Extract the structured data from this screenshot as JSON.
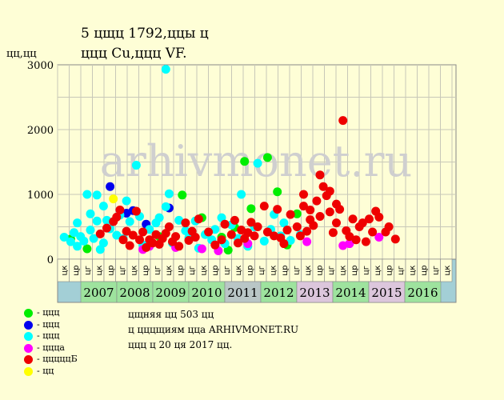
{
  "title_line1": "5  цщц 1792,ццы ц",
  "title_line2": "ццц Cu,ццц VF.",
  "y_label": "цц,цц",
  "watermark": "arhivmonet.ru",
  "legend": [
    {
      "label": "- ццц",
      "color": "#00ee00"
    },
    {
      "label": "- ццц",
      "color": "#0000ee"
    },
    {
      "label": "- ццц",
      "color": "#00ffff"
    },
    {
      "label": "- ццца",
      "color": "#ff00ff"
    },
    {
      "label": "- цццццБ",
      "color": "#ee0000"
    },
    {
      "label": "- цц",
      "color": "#ffff00"
    }
  ],
  "info": [
    "цщняя цц 503 цц",
    "ц цццщиям цца ARHIVMONET.RU",
    "ццц ц 20 ця 2017 цц."
  ],
  "chart_data": {
    "type": "scatter",
    "ylim": [
      0,
      3000
    ],
    "yticks": [
      0,
      1000,
      2000,
      3000
    ],
    "grid": true,
    "half_year_labels": [
      "цк",
      "цр",
      "цг",
      "цк",
      "цр",
      "цг",
      "цк",
      "цр",
      "цг",
      "цк",
      "цр",
      "цг",
      "цк",
      "цр",
      "цг",
      "цк",
      "цр",
      "цг",
      "цк",
      "цр",
      "цг",
      "цк",
      "цр",
      "цг",
      "цк",
      "цр",
      "цг",
      "цк",
      "цр",
      "цг",
      "цк",
      "цр",
      "цг",
      "цк",
      "цр",
      "цг",
      "цк",
      "цр",
      "цг",
      "цк",
      "цр",
      "цг",
      "цк",
      "цр",
      "цг",
      "цк",
      "цр",
      "цг",
      "цк",
      "цр",
      "цг",
      "цк",
      "цр",
      "цг",
      "цк",
      "цр",
      "цг",
      "цк",
      "цр",
      "цг",
      "цк",
      "цр",
      "цг",
      "цк",
      "цр",
      "цг",
      "цк",
      "цр",
      "цг",
      "цк",
      "цр",
      "цг",
      "цк",
      "цр",
      "цг",
      "цк",
      "цр",
      "цг",
      "цк",
      "цр",
      "цг",
      "цк",
      "цр",
      "цг",
      "цк",
      "цр",
      "цг",
      "цк",
      "цр",
      "цг",
      "цк",
      "цр",
      "цг",
      "цк",
      "цр",
      "цг",
      "цк",
      "цр",
      "цг",
      "цк",
      "цр",
      "цг",
      "цк",
      "цр",
      "цг",
      "цк",
      "цр",
      "цг",
      "цк",
      "цр",
      "цг",
      "цк",
      "цр",
      "цг",
      "цк",
      "цр",
      "цг",
      "цк",
      "цр",
      "цг",
      "цк",
      "цр",
      "цг",
      "цк",
      "цр",
      "цг",
      "цк",
      "цр",
      "цг",
      "цк",
      "цр",
      "цг",
      "цк",
      "цр",
      "цг",
      "цк",
      "цр",
      "цг",
      "цк",
      "цр",
      "цг",
      "цк",
      "цр",
      "цг",
      "цк",
      "цр",
      "цг",
      "цк",
      "цр",
      "цг",
      "цк",
      "цр",
      "цг",
      "цк",
      "цр",
      "цг",
      "цк",
      "цр",
      "цг",
      "цк",
      "цр",
      "цг",
      "цк",
      "цр",
      "цг",
      "цк",
      "цр",
      "цг",
      "цк",
      "цр",
      "цг",
      "цк",
      "цр",
      "цг",
      "цк",
      "цр",
      "цг",
      "цк",
      "цр",
      "цг",
      "цк",
      "цр",
      "цг",
      "цк",
      "цр",
      "цг",
      "цк",
      "цр",
      "цг",
      "цк",
      "цр",
      "цг",
      "цк",
      "цр",
      "цг",
      "цк",
      "цр",
      "цг",
      "цк",
      "цр",
      "цг",
      "цк",
      "цр",
      "цг",
      "цк",
      "цр",
      "цг",
      "цк",
      "цр",
      "цг",
      "цк",
      "цр",
      "цг",
      "цк",
      "цр",
      "цг",
      "цк",
      "цр",
      "цг",
      "цк",
      "цр",
      "цг",
      "цк",
      "цр",
      "цг",
      "цк",
      "цр",
      "цг",
      "цк",
      "цр",
      "цг",
      "цк",
      "цр",
      "цг",
      "цк",
      "цр",
      "цг",
      "цк",
      "цр",
      "цг",
      "цк",
      "цр",
      "цг",
      "цк",
      "цр",
      "цг",
      "цк",
      "цр",
      "цг",
      "цк",
      "цр",
      "цг",
      "цк",
      "цр",
      "цг",
      "цк",
      "цр",
      "цг",
      "цк",
      "цр",
      "цг",
      "цк",
      "цр",
      "цг",
      "цк",
      "цр",
      "цг",
      "цк",
      "цр",
      "цг",
      "цк",
      "цр",
      "цг",
      "цк",
      "цр",
      "цг",
      "цк",
      "цр",
      "цг",
      "цк",
      "цр",
      "цг",
      "цк",
      "цр",
      "цг",
      "цк",
      "цр",
      "цг",
      "цк",
      "цр",
      "цг",
      "цк",
      "цр",
      "цг",
      "цк",
      "цр",
      "цг",
      "цк",
      "цр",
      "цг",
      "цк",
      "цр",
      "цг",
      "цк",
      "цр",
      "цг",
      "цк",
      "цр",
      "цг",
      "цк",
      "цр",
      "цг",
      "цк",
      "цр",
      "цг",
      "цк",
      "цр",
      "цг",
      "цк",
      "цр",
      "цг",
      "цк",
      "цр",
      "цг",
      "цк",
      "цр",
      "цг",
      "цк",
      "цр",
      "цг",
      "цк",
      "цр",
      "цг",
      "цк",
      "цр",
      "цг",
      "цк",
      "цр",
      "цг",
      "цк",
      "цр",
      "цг",
      "цк",
      "цр",
      "цг",
      "цк",
      "цр",
      "цг",
      "цк",
      "цр",
      "цг",
      "цк",
      "цр",
      "цг",
      "цк",
      "цр",
      "цг",
      "цк",
      "цр",
      "цг",
      "цк",
      "цр",
      "цг",
      "цк",
      "цр",
      "цг",
      "цк",
      "цр",
      "цг",
      "цк",
      "цр",
      "цг",
      "цк",
      "цр",
      "цг",
      "цк",
      "цр",
      "цг",
      "цк",
      "цр",
      "цг",
      "цк",
      "цр",
      "цг",
      "цк",
      "цр",
      "цг",
      "цк",
      "цр",
      "цг",
      "цк",
      "цр",
      "цг",
      "цк",
      "цр",
      "цг",
      "цк",
      "цр",
      "цг",
      "цк",
      "цр",
      "цг",
      "цк",
      "цр",
      "цг",
      "цк",
      "цр",
      "цг",
      "цк",
      "цр",
      "цг",
      "цк",
      "цр",
      "цг",
      "цк",
      "цр",
      "цг",
      "цк",
      "цр",
      "цг",
      "цк",
      "цр",
      "цг",
      "цк",
      "цр",
      "цг",
      "цк",
      "цр",
      "цг",
      "цк",
      "цр",
      "цг",
      "цк",
      "цр",
      "цг",
      "цк",
      "цр",
      "цг",
      "цк",
      "цр",
      "цг",
      "цк",
      "цр",
      "цг",
      "цк",
      "цр",
      "цг",
      "цк",
      "цр",
      "цг",
      "цк",
      "цр",
      "цг",
      "цк",
      "цр",
      "цг",
      "цк",
      "цр",
      "цг",
      "цк",
      "цр",
      "цг",
      "цк",
      "цр",
      "цг",
      "цк",
      "цр",
      "цг",
      "цк",
      "цр",
      "цг",
      "цк",
      "цр",
      "цг",
      "цк",
      "цр",
      "цг",
      "цк",
      "цр",
      "цг",
      "цк",
      "цр",
      "цг",
      "цк",
      "цр",
      "цг",
      "цк",
      "цр",
      "цг",
      "цк",
      "цр",
      "цг",
      "цк",
      "цр",
      "цг",
      "цк",
      "цр",
      "цг",
      "цк",
      "цр",
      "цг",
      "цк",
      "цр",
      "цг",
      "цк",
      "цр",
      "цг",
      "цк",
      "цр",
      "цг",
      "цк",
      "цр",
      "цг",
      "цк",
      "цр",
      "цг",
      "цк",
      "цр",
      "цг",
      "цк",
      "цр",
      "цг",
      "цк",
      "цр",
      "цг",
      "цк",
      "цр",
      "цг",
      "цк",
      "цр",
      "цг",
      "цк",
      "цр",
      "цг",
      "цк",
      "цр",
      "цг",
      "цк",
      "цр",
      "цг",
      "цк",
      "цр",
      "цг",
      "цк",
      "цр",
      "цг",
      "цк",
      "цр",
      "цг",
      "цк",
      "цр",
      "цг",
      "цк",
      "цр",
      "цг",
      "цк",
      "цр",
      "цг",
      "цк",
      "цр",
      "цг",
      "цк",
      "цр",
      "цг",
      "цк",
      "цр",
      "цг",
      "цк",
      "цр",
      "цг",
      "цк",
      "цр",
      "цг",
      "цк",
      "цр",
      "цг",
      "цк",
      "цр",
      "цг",
      "цк",
      "цр",
      "цг",
      "цк",
      "цр",
      "цг",
      "цк",
      "цр",
      "цг",
      "цк",
      "цр",
      "цг",
      "цк",
      "цр",
      "цг",
      "цк",
      "цр",
      "цг",
      "цк",
      "цр",
      "цг",
      "цк",
      "цр",
      "цг",
      "цк",
      "цр",
      "цг",
      "цк",
      "цр",
      "цг",
      "цк",
      "цр",
      "цг",
      "цк",
      "цр",
      "цг",
      "цк",
      "цр",
      "цг",
      "цк",
      "цр",
      "цг",
      "цк",
      "цр",
      "цг",
      "цк",
      "цр",
      "цг",
      "цк",
      "цр",
      "цг",
      "цк",
      "цр",
      "цг",
      "цк",
      "цр",
      "цг",
      "цк",
      "цр",
      "цг",
      "цк",
      "цр",
      "цг",
      "цк",
      "цр",
      "цг",
      "цк",
      "цр",
      "цг",
      "цк",
      "цр",
      "цг",
      "цк",
      "цр",
      "цг",
      "цк",
      "цр",
      "цг",
      "цк",
      "цр",
      "цг",
      "цк",
      "цр",
      "цг",
      "цк",
      "цр",
      "цг"
    ],
    "years": [
      "2007",
      "2008",
      "2009",
      "2010",
      "2011",
      "2012",
      "2013",
      "2014",
      "2015",
      "2016"
    ],
    "year_colors": [
      "#9ee39e",
      "#9ee39e",
      "#9ee39e",
      "#9ee39e",
      "#b9c6c6",
      "#9ee39e",
      "#dcc6dc",
      "#9ee39e",
      "#dcc6dc",
      "#9ee39e"
    ],
    "series": [
      {
        "color": "#00ee00",
        "points": [
          [
            2006.9,
            310
          ],
          [
            2007.4,
            160
          ],
          [
            2009.6,
            350
          ],
          [
            2010.3,
            990
          ],
          [
            2010.9,
            640
          ],
          [
            2011.5,
            340
          ],
          [
            2011.7,
            140
          ],
          [
            2011.9,
            490
          ],
          [
            2012.2,
            1510
          ],
          [
            2012.4,
            780
          ],
          [
            2012.9,
            1570
          ],
          [
            2013.2,
            1040
          ],
          [
            2013.5,
            220
          ],
          [
            2013.8,
            700
          ]
        ]
      },
      {
        "color": "#0000ee",
        "points": [
          [
            2008.1,
            1120
          ],
          [
            2008.6,
            710
          ],
          [
            2008.8,
            750
          ],
          [
            2009.2,
            540
          ],
          [
            2009.9,
            790
          ]
        ]
      },
      {
        "color": "#00ffff",
        "points": [
          [
            2006.7,
            340
          ],
          [
            2006.9,
            270
          ],
          [
            2007.0,
            410
          ],
          [
            2007.1,
            200
          ],
          [
            2007.1,
            560
          ],
          [
            2007.2,
            350
          ],
          [
            2007.3,
            280
          ],
          [
            2007.4,
            1000
          ],
          [
            2007.5,
            450
          ],
          [
            2007.5,
            700
          ],
          [
            2007.6,
            320
          ],
          [
            2007.7,
            990
          ],
          [
            2007.7,
            590
          ],
          [
            2007.8,
            150
          ],
          [
            2007.9,
            250
          ],
          [
            2007.9,
            820
          ],
          [
            2008.0,
            600
          ],
          [
            2008.1,
            470
          ],
          [
            2008.3,
            370
          ],
          [
            2008.4,
            680
          ],
          [
            2008.5,
            320
          ],
          [
            2008.6,
            900
          ],
          [
            2008.7,
            580
          ],
          [
            2008.9,
            1450
          ],
          [
            2009.0,
            660
          ],
          [
            2009.1,
            220
          ],
          [
            2009.3,
            460
          ],
          [
            2009.5,
            560
          ],
          [
            2009.6,
            640
          ],
          [
            2009.8,
            2930
          ],
          [
            2009.8,
            810
          ],
          [
            2009.9,
            1010
          ],
          [
            2010.0,
            250
          ],
          [
            2010.2,
            600
          ],
          [
            2010.4,
            440
          ],
          [
            2010.5,
            330
          ],
          [
            2010.7,
            590
          ],
          [
            2010.8,
            170
          ],
          [
            2011.0,
            380
          ],
          [
            2011.2,
            300
          ],
          [
            2011.3,
            460
          ],
          [
            2011.5,
            640
          ],
          [
            2011.6,
            240
          ],
          [
            2011.8,
            530
          ],
          [
            2012.0,
            320
          ],
          [
            2012.1,
            1000
          ],
          [
            2012.3,
            200
          ],
          [
            2012.5,
            500
          ],
          [
            2012.6,
            1480
          ],
          [
            2012.8,
            280
          ],
          [
            2013.0,
            460
          ],
          [
            2013.1,
            690
          ],
          [
            2013.3,
            360
          ],
          [
            2013.4,
            560
          ],
          [
            2013.6,
            290
          ],
          [
            2013.9,
            380
          ]
        ]
      },
      {
        "color": "#ff00ff",
        "points": [
          [
            2009.1,
            150
          ],
          [
            2009.3,
            200
          ],
          [
            2010.1,
            180
          ],
          [
            2010.9,
            160
          ],
          [
            2011.4,
            130
          ],
          [
            2012.3,
            240
          ],
          [
            2014.1,
            270
          ],
          [
            2015.2,
            210
          ],
          [
            2015.4,
            240
          ],
          [
            2016.3,
            340
          ]
        ]
      },
      {
        "color": "#ee0000",
        "points": [
          [
            2007.8,
            390
          ],
          [
            2008.0,
            480
          ],
          [
            2008.2,
            580
          ],
          [
            2008.3,
            650
          ],
          [
            2008.4,
            760
          ],
          [
            2008.5,
            300
          ],
          [
            2008.6,
            430
          ],
          [
            2008.7,
            210
          ],
          [
            2008.8,
            370
          ],
          [
            2008.9,
            740
          ],
          [
            2009.0,
            300
          ],
          [
            2009.1,
            420
          ],
          [
            2009.2,
            180
          ],
          [
            2009.3,
            300
          ],
          [
            2009.4,
            250
          ],
          [
            2009.5,
            380
          ],
          [
            2009.6,
            230
          ],
          [
            2009.7,
            320
          ],
          [
            2009.8,
            400
          ],
          [
            2009.9,
            500
          ],
          [
            2010.0,
            270
          ],
          [
            2010.1,
            350
          ],
          [
            2010.2,
            200
          ],
          [
            2010.4,
            560
          ],
          [
            2010.5,
            290
          ],
          [
            2010.6,
            430
          ],
          [
            2010.7,
            340
          ],
          [
            2010.8,
            620
          ],
          [
            2011.1,
            420
          ],
          [
            2011.3,
            220
          ],
          [
            2011.5,
            300
          ],
          [
            2011.6,
            540
          ],
          [
            2011.8,
            380
          ],
          [
            2011.9,
            600
          ],
          [
            2012.0,
            250
          ],
          [
            2012.1,
            450
          ],
          [
            2012.2,
            320
          ],
          [
            2012.3,
            410
          ],
          [
            2012.4,
            570
          ],
          [
            2012.5,
            360
          ],
          [
            2012.6,
            500
          ],
          [
            2012.8,
            820
          ],
          [
            2012.9,
            420
          ],
          [
            2013.1,
            360
          ],
          [
            2013.2,
            770
          ],
          [
            2013.3,
            330
          ],
          [
            2013.4,
            240
          ],
          [
            2013.5,
            450
          ],
          [
            2013.6,
            690
          ],
          [
            2013.8,
            500
          ],
          [
            2013.9,
            360
          ],
          [
            2014.0,
            820
          ],
          [
            2014.0,
            1000
          ],
          [
            2014.1,
            430
          ],
          [
            2014.2,
            610
          ],
          [
            2014.2,
            760
          ],
          [
            2014.3,
            520
          ],
          [
            2014.4,
            900
          ],
          [
            2014.5,
            660
          ],
          [
            2014.5,
            1300
          ],
          [
            2014.6,
            1120
          ],
          [
            2014.7,
            980
          ],
          [
            2014.8,
            730
          ],
          [
            2014.8,
            1050
          ],
          [
            2014.9,
            410
          ],
          [
            2015.0,
            850
          ],
          [
            2015.0,
            560
          ],
          [
            2015.1,
            770
          ],
          [
            2015.2,
            2140
          ],
          [
            2015.3,
            440
          ],
          [
            2015.4,
            350
          ],
          [
            2015.5,
            620
          ],
          [
            2015.6,
            300
          ],
          [
            2015.7,
            500
          ],
          [
            2015.8,
            560
          ],
          [
            2015.9,
            270
          ],
          [
            2016.0,
            620
          ],
          [
            2016.1,
            420
          ],
          [
            2016.2,
            740
          ],
          [
            2016.3,
            650
          ],
          [
            2016.5,
            420
          ],
          [
            2016.6,
            500
          ],
          [
            2016.8,
            310
          ]
        ]
      },
      {
        "color": "#ffff00",
        "points": [
          [
            2008.2,
            930
          ]
        ]
      }
    ]
  }
}
